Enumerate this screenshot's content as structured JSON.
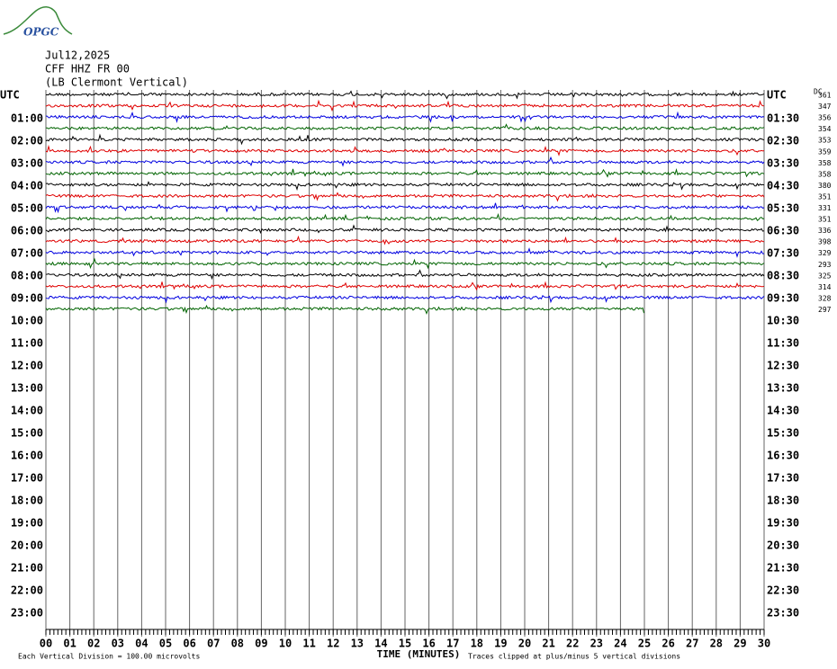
{
  "chart_data": {
    "type": "helicorder",
    "logo": "OPGC",
    "date": "Jul12,2025",
    "station": "CFF HHZ FR 00",
    "location": "(LB Clermont Vertical)",
    "left_labels": [
      "UTC",
      "01:00",
      "02:00",
      "03:00",
      "04:00",
      "05:00",
      "06:00",
      "07:00",
      "08:00",
      "09:00",
      "10:00",
      "11:00",
      "12:00",
      "13:00",
      "14:00",
      "15:00",
      "16:00",
      "17:00",
      "18:00",
      "19:00",
      "20:00",
      "21:00",
      "22:00",
      "23:00"
    ],
    "right_labels": [
      "UTC",
      "01:30",
      "02:30",
      "03:30",
      "04:30",
      "05:30",
      "06:30",
      "07:30",
      "08:30",
      "09:30",
      "10:30",
      "11:30",
      "12:30",
      "13:30",
      "14:30",
      "15:30",
      "16:30",
      "17:30",
      "18:30",
      "19:30",
      "20:30",
      "21:30",
      "22:30",
      "23:30"
    ],
    "dc_label": "DC",
    "dc_values": [
      361,
      347,
      356,
      354,
      353,
      359,
      358,
      358,
      380,
      351,
      331,
      351,
      336,
      398,
      329,
      293,
      325,
      314,
      328,
      297
    ],
    "trace_colors": [
      "#000000",
      "#e00000",
      "#0000e0",
      "#006400"
    ],
    "trace_ends": [
      30,
      30,
      30,
      30,
      30,
      30,
      30,
      30,
      30,
      30,
      30,
      30,
      30,
      30,
      30,
      30,
      30,
      30,
      30,
      25
    ],
    "xlim": [
      0,
      30
    ],
    "xticks": [
      {
        "value": 0,
        "label": "00"
      },
      {
        "value": 1,
        "label": "01"
      },
      {
        "value": 2,
        "label": "02"
      },
      {
        "value": 3,
        "label": "03"
      },
      {
        "value": 4,
        "label": "04"
      },
      {
        "value": 5,
        "label": "05"
      },
      {
        "value": 6,
        "label": "06"
      },
      {
        "value": 7,
        "label": "07"
      },
      {
        "value": 8,
        "label": "08"
      },
      {
        "value": 9,
        "label": "09"
      },
      10,
      11,
      12,
      13,
      14,
      15,
      16,
      17,
      18,
      19,
      20,
      21,
      22,
      23,
      24,
      25,
      26,
      27,
      28,
      29,
      30
    ],
    "x_label": "TIME (MINUTES)",
    "footer_left": "Each Vertical Division =  100.00 microvolts",
    "footer_right": "Traces clipped at plus/minus 5 vertical divisions"
  }
}
